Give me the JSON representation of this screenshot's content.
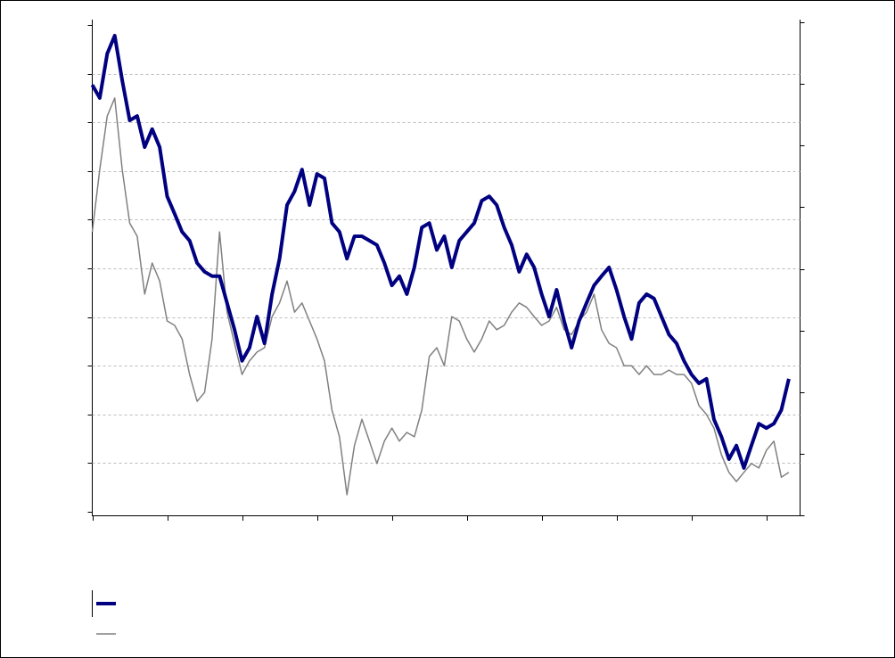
{
  "chart_data": {
    "type": "line",
    "x": [
      0,
      0.1,
      0.2,
      0.3,
      0.4,
      0.5,
      0.6,
      0.7,
      0.8,
      0.9,
      1,
      1.1,
      1.2,
      1.3,
      1.4,
      1.5,
      1.6,
      1.7,
      1.8,
      1.9,
      2,
      2.1,
      2.2,
      2.3,
      2.4,
      2.5,
      2.6,
      2.7,
      2.8,
      2.9,
      3,
      3.1,
      3.2,
      3.3,
      3.4,
      3.5,
      3.6,
      3.7,
      3.8,
      3.9,
      4,
      4.1,
      4.2,
      4.3,
      4.4,
      4.5,
      4.6,
      4.7,
      4.8,
      4.9,
      5,
      5.1,
      5.2,
      5.3,
      5.4,
      5.5,
      5.6,
      5.7,
      5.8,
      5.9,
      6,
      6.1,
      6.2,
      6.3,
      6.4,
      6.5,
      6.6,
      6.7,
      6.8,
      6.9,
      7,
      7.1,
      7.2,
      7.3,
      7.4,
      7.5,
      7.6,
      7.7,
      7.8,
      7.9,
      8,
      8.1,
      8.2,
      8.3,
      8.4,
      8.5,
      8.6,
      8.7,
      8.8,
      8.9,
      9,
      9.1,
      9.2,
      9.3
    ],
    "series": [
      {
        "color": "#000080",
        "values": [
          8.77,
          8.5,
          9.41,
          9.78,
          8.86,
          8.04,
          8.13,
          7.49,
          7.86,
          7.49,
          6.48,
          6.12,
          5.75,
          5.57,
          5.11,
          4.93,
          4.84,
          4.84,
          4.29,
          3.74,
          3.1,
          3.37,
          4.01,
          3.46,
          4.47,
          5.2,
          6.3,
          6.58,
          7.03,
          6.3,
          6.94,
          6.85,
          5.93,
          5.75,
          5.2,
          5.66,
          5.66,
          5.57,
          5.48,
          5.11,
          4.65,
          4.84,
          4.47,
          5.02,
          5.84,
          5.93,
          5.38,
          5.66,
          5.02,
          5.57,
          5.75,
          5.93,
          6.39,
          6.48,
          6.3,
          5.84,
          5.48,
          4.93,
          5.29,
          5.02,
          4.47,
          4.01,
          4.56,
          3.92,
          3.37,
          3.92,
          4.29,
          4.65,
          4.84,
          5.02,
          4.56,
          4.01,
          3.55,
          4.29,
          4.47,
          4.38,
          4.01,
          3.64,
          3.46,
          3.1,
          2.82,
          2.64,
          2.73,
          1.9,
          1.54,
          1.08,
          1.36,
          0.9,
          1.36,
          1.81,
          1.72,
          1.81,
          2.09,
          2.73
        ]
      },
      {
        "color": "#808080",
        "values": [
          5.75,
          7.03,
          8.13,
          8.5,
          7.03,
          5.93,
          5.66,
          4.47,
          5.11,
          4.74,
          3.92,
          3.83,
          3.55,
          2.82,
          2.27,
          2.45,
          3.55,
          5.75,
          4.1,
          3.46,
          2.82,
          3.1,
          3.28,
          3.37,
          4.01,
          4.29,
          4.74,
          4.1,
          4.29,
          3.92,
          3.55,
          3.1,
          2.09,
          1.54,
          0.35,
          1.36,
          1.9,
          1.45,
          0.99,
          1.45,
          1.72,
          1.45,
          1.63,
          1.54,
          2.09,
          3.19,
          3.37,
          3,
          4.01,
          3.92,
          3.55,
          3.28,
          3.55,
          3.92,
          3.74,
          3.83,
          4.1,
          4.29,
          4.2,
          4.01,
          3.83,
          3.92,
          4.2,
          3.74,
          3.64,
          3.92,
          4.1,
          4.47,
          3.74,
          3.46,
          3.37,
          3,
          3,
          2.82,
          3,
          2.82,
          2.82,
          2.91,
          2.82,
          2.82,
          2.64,
          2.18,
          2,
          1.72,
          1.17,
          0.81,
          0.62,
          0.81,
          0.99,
          0.9,
          1.26,
          1.45,
          0.71,
          0.81
        ]
      }
    ],
    "xlim": [
      0,
      9.45
    ],
    "xticks": [
      0,
      1,
      2,
      3,
      4,
      5,
      6,
      7,
      8,
      9
    ],
    "ylim": [
      0,
      10
    ],
    "yticks": [
      0,
      1,
      2,
      3,
      4,
      5,
      6,
      7,
      8,
      9,
      10
    ],
    "y2lim": [
      0,
      8
    ],
    "y2ticks": [
      0,
      1,
      2,
      3,
      4,
      5,
      6,
      7,
      8
    ],
    "grid": true,
    "legend": true
  }
}
